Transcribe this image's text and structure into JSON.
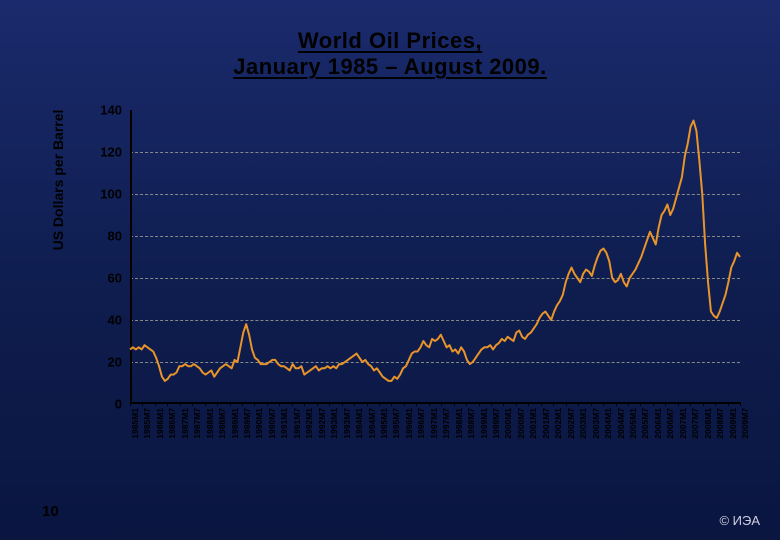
{
  "title_line1": "World Oil Prices,",
  "title_line2": "January 1985 – August 2009.",
  "page_number": "10",
  "copyright": "© ИЭА",
  "chart": {
    "type": "line",
    "y_axis_label": "US Dollars per Barrel",
    "ylim": [
      0,
      140
    ],
    "ytick_step": 20,
    "yticks": [
      0,
      20,
      40,
      60,
      80,
      100,
      120,
      140
    ],
    "line_color": "#e8942a",
    "line_width": 2,
    "grid_color": "#888888",
    "grid_style": "dashed",
    "axis_color": "#000000",
    "tick_label_color": "#000000",
    "tick_label_fontsize": 13,
    "xtick_label_fontsize": 8.5,
    "x_labels": [
      "1985M1",
      "1985M7",
      "1986M1",
      "1986M7",
      "1987M1",
      "1987M7",
      "1988M1",
      "1988M7",
      "1989M1",
      "1989M7",
      "1990M1",
      "1990M7",
      "1991M1",
      "1991M7",
      "1992M1",
      "1992M7",
      "1993M1",
      "1993M7",
      "1994M1",
      "1994M7",
      "1995M1",
      "1995M7",
      "1996M1",
      "1996M7",
      "1997M1",
      "1997M7",
      "1998M1",
      "1998M7",
      "1999M1",
      "1999M7",
      "2000M1",
      "2000M7",
      "2001M1",
      "2001M7",
      "2002M1",
      "2002M7",
      "2003M1",
      "2003M7",
      "2004M1",
      "2004M7",
      "2005M1",
      "2005M7",
      "2006M1",
      "2006M7",
      "2007M1",
      "2007M7",
      "2008M1",
      "2008M7",
      "2009M1",
      "2009M7"
    ],
    "values": [
      26,
      27,
      26,
      27,
      26,
      28,
      27,
      26,
      25,
      22,
      18,
      13,
      11,
      12,
      14,
      14,
      15,
      18,
      18,
      19,
      18,
      18,
      19,
      18,
      17,
      15,
      14,
      15,
      16,
      13,
      15,
      17,
      18,
      19,
      18,
      17,
      21,
      20,
      27,
      34,
      38,
      33,
      26,
      22,
      21,
      19,
      19,
      19,
      20,
      21,
      21,
      19,
      18,
      18,
      17,
      16,
      19,
      17,
      17,
      18,
      14,
      15,
      16,
      17,
      18,
      16,
      17,
      17,
      18,
      17,
      18,
      17,
      19,
      19,
      20,
      21,
      22,
      23,
      24,
      22,
      20,
      21,
      19,
      18,
      16,
      17,
      15,
      13,
      12,
      11,
      11,
      13,
      12,
      14,
      17,
      18,
      21,
      24,
      25,
      25,
      27,
      30,
      28,
      27,
      31,
      30,
      31,
      33,
      30,
      27,
      28,
      25,
      26,
      24,
      27,
      25,
      21,
      19,
      20,
      22,
      24,
      26,
      27,
      27,
      28,
      26,
      28,
      29,
      31,
      30,
      32,
      31,
      30,
      34,
      35,
      32,
      31,
      33,
      34,
      36,
      38,
      41,
      43,
      44,
      42,
      40,
      44,
      47,
      49,
      52,
      58,
      62,
      65,
      62,
      60,
      58,
      62,
      64,
      63,
      61,
      66,
      70,
      73,
      74,
      72,
      68,
      60,
      58,
      59,
      62,
      58,
      56,
      60,
      62,
      64,
      67,
      70,
      74,
      78,
      82,
      79,
      76,
      84,
      90,
      92,
      95,
      90,
      93,
      98,
      103,
      108,
      118,
      124,
      132,
      135,
      130,
      116,
      100,
      76,
      58,
      44,
      42,
      41,
      44,
      48,
      52,
      58,
      65,
      68,
      72,
      70
    ]
  }
}
